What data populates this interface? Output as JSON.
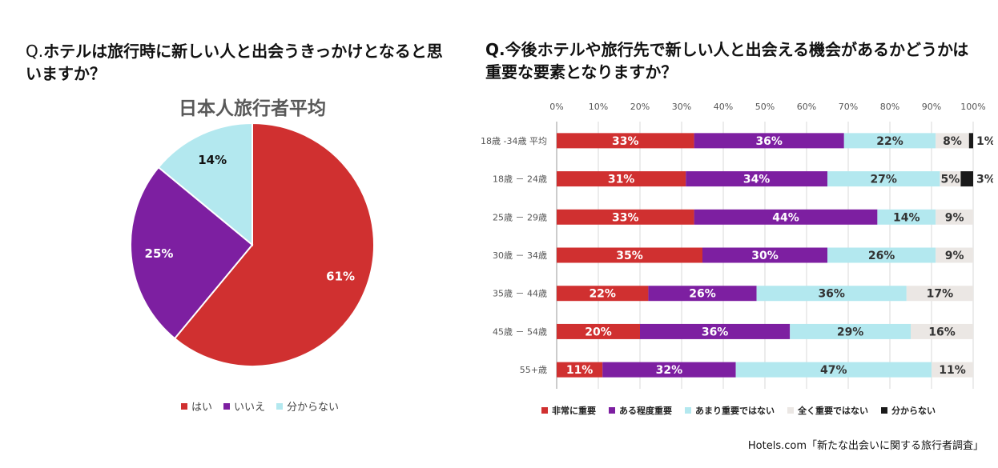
{
  "left_question": {
    "prefix": "Q.",
    "text": "ホテルは旅行時に新しい人と出会うきっかけとなると思いますか？"
  },
  "right_question": {
    "text": "Q.今後ホテルや旅行先で新しい人と出会える機会があるかどうかは重要な要素となりますか？"
  },
  "colors": {
    "red": "#d03030",
    "purple": "#7d1fa1",
    "cyan": "#b3e8ef",
    "lightgray": "#ebe7e4",
    "black": "#1a1a1a"
  },
  "chart_data": [
    {
      "type": "pie",
      "title": "日本人旅行者平均",
      "slices": [
        {
          "label": "はい",
          "value": 61,
          "display": "61%"
        },
        {
          "label": "いいえ",
          "value": 25,
          "display": "25%"
        },
        {
          "label": "分からない",
          "value": 14,
          "display": "14%"
        }
      ]
    },
    {
      "type": "bar",
      "orientation": "horizontal-stacked-100",
      "x_ticks": [
        "0%",
        "10%",
        "20%",
        "30%",
        "40%",
        "50%",
        "60%",
        "70%",
        "80%",
        "90%",
        "100%"
      ],
      "xlim": [
        0,
        100
      ],
      "legend": [
        "非常に重要",
        "ある程度重要",
        "あまり重要ではない",
        "全く重要ではない",
        "分からない"
      ],
      "categories": [
        "18歳 -34歳 平均",
        "18歳 － 24歳",
        "25歳 － 29歳",
        "30歳 － 34歳",
        "35歳 － 44歳",
        "45歳 － 54歳",
        "55+歳"
      ],
      "series": [
        {
          "name": "非常に重要",
          "values": [
            33,
            31,
            33,
            35,
            22,
            20,
            11
          ],
          "labels": [
            "33%",
            "31%",
            "33%",
            "35%",
            "22%",
            "20%",
            "11%"
          ]
        },
        {
          "name": "ある程度重要",
          "values": [
            36,
            34,
            44,
            30,
            26,
            36,
            32
          ],
          "labels": [
            "36%",
            "34%",
            "44%",
            "30%",
            "26%",
            "36%",
            "32%"
          ]
        },
        {
          "name": "あまり重要ではない",
          "values": [
            22,
            27,
            14,
            26,
            36,
            29,
            47
          ],
          "labels": [
            "22%",
            "27%",
            "14%",
            "26%",
            "36%",
            "29%",
            "47%"
          ]
        },
        {
          "name": "全く重要ではない",
          "values": [
            8,
            5,
            9,
            9,
            17,
            16,
            11
          ],
          "labels": [
            "8%",
            "5%",
            "9%",
            "9%",
            "17%",
            "16%",
            "11%"
          ]
        },
        {
          "name": "分からない",
          "values": [
            1,
            3,
            0,
            0,
            0,
            0,
            0
          ],
          "labels": [
            "1%",
            "3%",
            "",
            "",
            "",
            "",
            ""
          ]
        }
      ]
    }
  ],
  "source": "Hotels.com「新たな出会いに関する旅行者調査」"
}
